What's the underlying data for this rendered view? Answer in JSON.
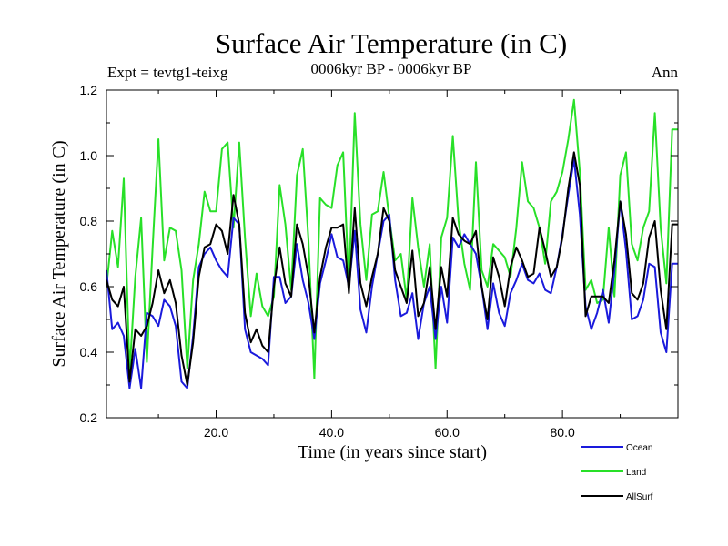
{
  "chart_data": {
    "type": "line",
    "title": "Surface Air Temperature (in C)",
    "subtitle": "0006kyr BP - 0006kyr BP",
    "left_label": "Expt = tevtg1-teixg",
    "right_label": "Ann",
    "xlabel": "Time (in years since start)",
    "ylabel": "Surface Air Temperature (in C)",
    "xlim": [
      1,
      100
    ],
    "ylim": [
      0.2,
      1.2
    ],
    "xticks": [
      "20.0",
      "40.0",
      "60.0",
      "80.0"
    ],
    "xtick_values": [
      20,
      40,
      60,
      80
    ],
    "yticks": [
      "0.2",
      "0.4",
      "0.6",
      "0.8",
      "1.0",
      "1.2"
    ],
    "ytick_values": [
      0.2,
      0.4,
      0.6,
      0.8,
      1.0,
      1.2
    ],
    "legend_position": "bottom-right outside",
    "x": [
      1,
      2,
      3,
      4,
      5,
      6,
      7,
      8,
      9,
      10,
      11,
      12,
      13,
      14,
      15,
      16,
      17,
      18,
      19,
      20,
      21,
      22,
      23,
      24,
      25,
      26,
      27,
      28,
      29,
      30,
      31,
      32,
      33,
      34,
      35,
      36,
      37,
      38,
      39,
      40,
      41,
      42,
      43,
      44,
      45,
      46,
      47,
      48,
      49,
      50,
      51,
      52,
      53,
      54,
      55,
      56,
      57,
      58,
      59,
      60,
      61,
      62,
      63,
      64,
      65,
      66,
      67,
      68,
      69,
      70,
      71,
      72,
      73,
      74,
      75,
      76,
      77,
      78,
      79,
      80,
      81,
      82,
      83,
      84,
      85,
      86,
      87,
      88,
      89,
      90,
      91,
      92,
      93,
      94,
      95,
      96,
      97,
      98,
      99,
      100
    ],
    "series": [
      {
        "name": "Ocean",
        "color": "#1a1adc",
        "values": [
          0.65,
          0.47,
          0.49,
          0.45,
          0.29,
          0.41,
          0.29,
          0.52,
          0.51,
          0.48,
          0.56,
          0.54,
          0.48,
          0.31,
          0.29,
          0.45,
          0.66,
          0.7,
          0.72,
          0.68,
          0.65,
          0.63,
          0.81,
          0.79,
          0.47,
          0.4,
          0.39,
          0.38,
          0.36,
          0.63,
          0.63,
          0.55,
          0.57,
          0.73,
          0.62,
          0.55,
          0.44,
          0.61,
          0.68,
          0.76,
          0.69,
          0.68,
          0.6,
          0.77,
          0.53,
          0.46,
          0.6,
          0.7,
          0.8,
          0.82,
          0.62,
          0.51,
          0.52,
          0.58,
          0.44,
          0.55,
          0.6,
          0.44,
          0.6,
          0.49,
          0.75,
          0.72,
          0.76,
          0.73,
          0.7,
          0.6,
          0.47,
          0.61,
          0.52,
          0.48,
          0.58,
          0.62,
          0.67,
          0.62,
          0.61,
          0.64,
          0.59,
          0.58,
          0.66,
          0.76,
          0.88,
          0.99,
          0.82,
          0.54,
          0.47,
          0.52,
          0.59,
          0.49,
          0.65,
          0.86,
          0.71,
          0.5,
          0.51,
          0.56,
          0.67,
          0.66,
          0.46,
          0.4,
          0.67,
          0.67
        ]
      },
      {
        "name": "Land",
        "color": "#28e028",
        "values": [
          0.6,
          0.77,
          0.66,
          0.93,
          0.34,
          0.63,
          0.81,
          0.37,
          0.72,
          1.05,
          0.68,
          0.78,
          0.77,
          0.65,
          0.35,
          0.62,
          0.73,
          0.89,
          0.83,
          0.83,
          1.02,
          1.04,
          0.78,
          1.04,
          0.75,
          0.51,
          0.64,
          0.54,
          0.51,
          0.57,
          0.91,
          0.79,
          0.59,
          0.94,
          1.02,
          0.74,
          0.32,
          0.87,
          0.85,
          0.84,
          0.97,
          1.01,
          0.6,
          1.13,
          0.79,
          0.62,
          0.82,
          0.83,
          0.95,
          0.81,
          0.68,
          0.7,
          0.56,
          0.87,
          0.72,
          0.6,
          0.73,
          0.35,
          0.75,
          0.81,
          1.06,
          0.8,
          0.67,
          0.59,
          0.98,
          0.65,
          0.6,
          0.73,
          0.71,
          0.69,
          0.63,
          0.78,
          0.98,
          0.86,
          0.84,
          0.78,
          0.67,
          0.86,
          0.89,
          0.95,
          1.05,
          1.17,
          0.95,
          0.59,
          0.62,
          0.55,
          0.56,
          0.78,
          0.57,
          0.94,
          1.01,
          0.73,
          0.68,
          0.78,
          0.83,
          1.13,
          0.78,
          0.61,
          1.08,
          1.08
        ]
      },
      {
        "name": "AllSurf",
        "color": "#000000",
        "values": [
          0.62,
          0.56,
          0.54,
          0.6,
          0.31,
          0.47,
          0.45,
          0.48,
          0.55,
          0.65,
          0.58,
          0.62,
          0.55,
          0.39,
          0.3,
          0.43,
          0.63,
          0.72,
          0.73,
          0.79,
          0.77,
          0.7,
          0.88,
          0.79,
          0.52,
          0.43,
          0.47,
          0.42,
          0.4,
          0.6,
          0.72,
          0.61,
          0.57,
          0.79,
          0.73,
          0.63,
          0.46,
          0.63,
          0.72,
          0.78,
          0.78,
          0.79,
          0.58,
          0.84,
          0.61,
          0.54,
          0.63,
          0.7,
          0.84,
          0.8,
          0.65,
          0.6,
          0.55,
          0.71,
          0.51,
          0.55,
          0.66,
          0.47,
          0.66,
          0.57,
          0.81,
          0.76,
          0.74,
          0.73,
          0.77,
          0.6,
          0.5,
          0.69,
          0.63,
          0.54,
          0.66,
          0.72,
          0.68,
          0.63,
          0.64,
          0.78,
          0.71,
          0.63,
          0.66,
          0.75,
          0.9,
          1.01,
          0.91,
          0.51,
          0.57,
          0.57,
          0.57,
          0.55,
          0.68,
          0.86,
          0.76,
          0.58,
          0.56,
          0.61,
          0.75,
          0.8,
          0.59,
          0.47,
          0.79,
          0.79
        ]
      }
    ]
  }
}
